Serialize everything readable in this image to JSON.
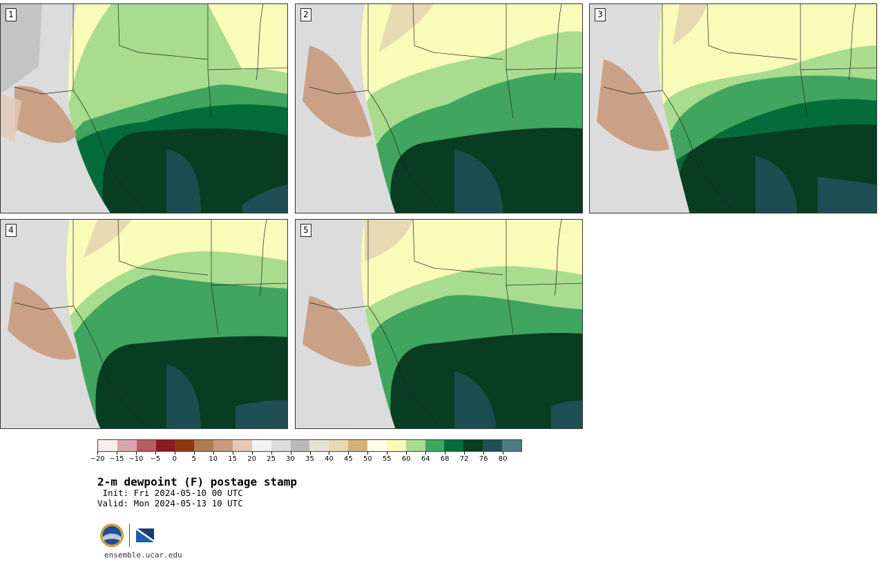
{
  "panels": [
    {
      "label": "1"
    },
    {
      "label": "2"
    },
    {
      "label": "3"
    },
    {
      "label": "4"
    },
    {
      "label": "5"
    }
  ],
  "colorbar": {
    "colors": [
      "#f7eeee",
      "#d9a6ab",
      "#b75c63",
      "#8b1a25",
      "#8b3a10",
      "#b07a52",
      "#c89a7c",
      "#e5c9b6",
      "#f3f3f3",
      "#dcdcdc",
      "#b9b9b9",
      "#e6e3d6",
      "#e7d9b2",
      "#d2b47a",
      "#fefee6",
      "#f9fbb9",
      "#a9dc8e",
      "#40a55e",
      "#036c3a",
      "#083d22",
      "#1e4f55",
      "#4f7d86"
    ],
    "tick_labels": [
      "−20",
      "−15",
      "−10",
      "−5",
      "0",
      "5",
      "10",
      "15",
      "20",
      "25",
      "30",
      "35",
      "40",
      "45",
      "50",
      "55",
      "60",
      "64",
      "68",
      "72",
      "76",
      "80"
    ]
  },
  "title": "2-m dewpoint (F) postage stamp",
  "init": " Init: Fri 2024-05-10 00 UTC",
  "valid": "Valid: Mon 2024-05-13 10 UTC",
  "logos": {
    "nsf": "NSF",
    "ncar": "NCAR"
  },
  "url": "ensemble.ucar.edu"
}
